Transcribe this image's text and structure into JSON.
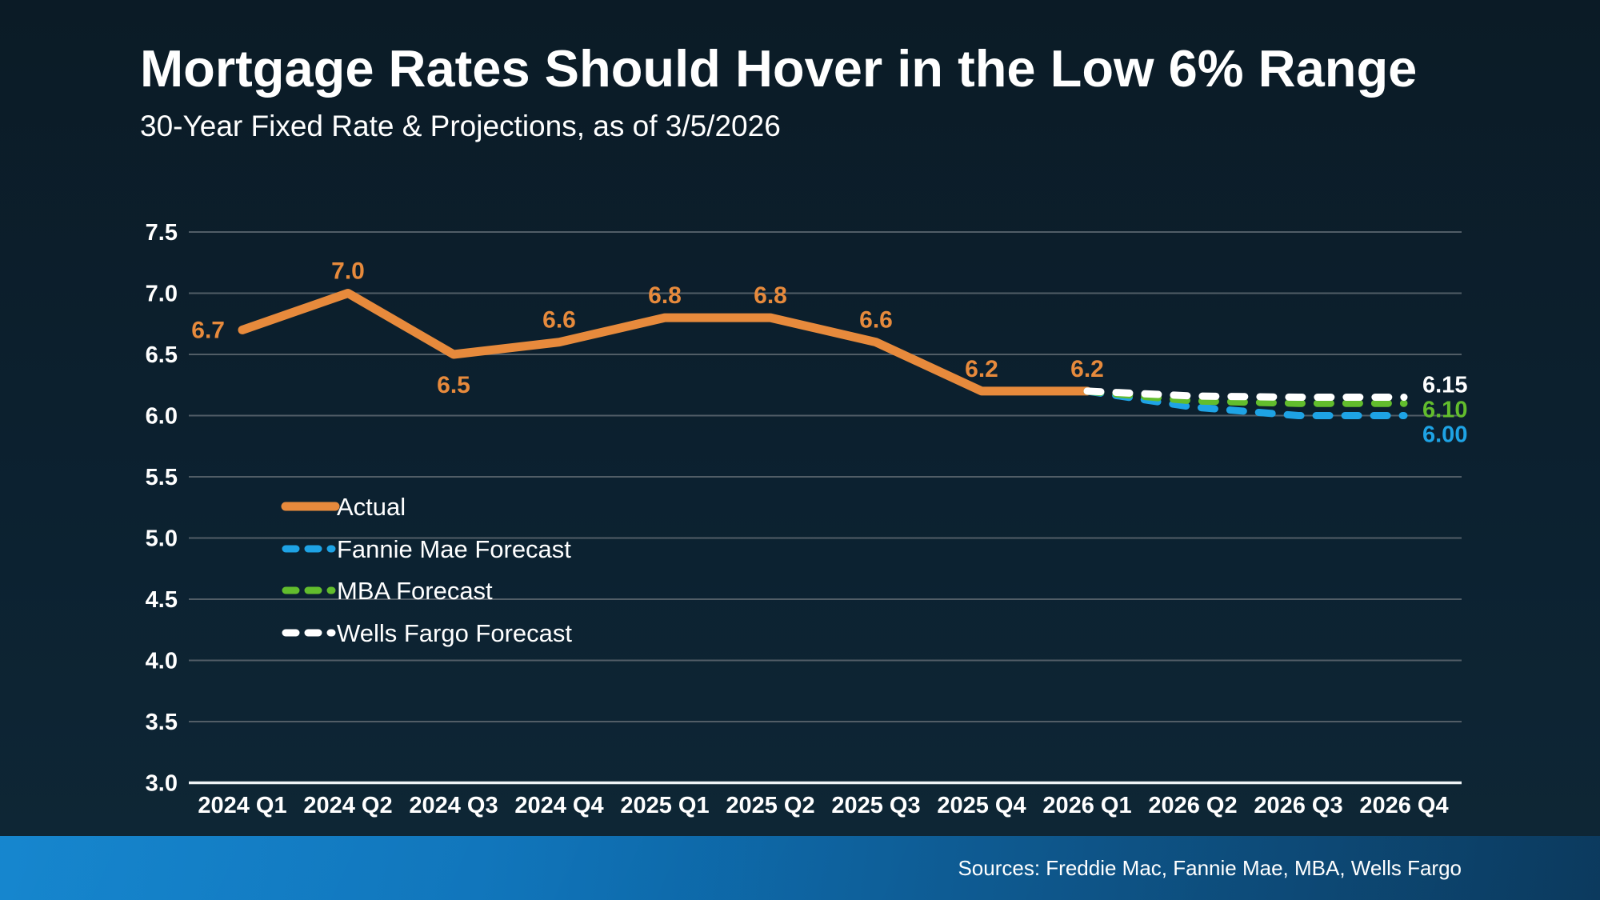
{
  "header": {
    "title": "Mortgage Rates Should Hover in the Low 6% Range",
    "subtitle": "30-Year Fixed Rate & Projections, as of 3/5/2026"
  },
  "footer": {
    "sources": "Sources: Freddie Mac, Fannie Mae, MBA, Wells Fargo"
  },
  "colors": {
    "background_top": "#0b1b26",
    "background_bottom": "#0e2736",
    "text": "#ffffff",
    "gridline": "#515d66",
    "axis_line": "#eef3f6",
    "actual": "#e78a3c",
    "fannie": "#1ea3e5",
    "mba": "#62bd2d",
    "wells": "#ffffff",
    "footer_left": "#0a80cc",
    "footer_right": "#0d3f66"
  },
  "chart_data": {
    "type": "line",
    "title": "Mortgage Rates Should Hover in the Low 6% Range",
    "subtitle": "30-Year Fixed Rate & Projections, as of 3/5/2026",
    "categories": [
      "2024 Q1",
      "2024 Q2",
      "2024 Q3",
      "2024 Q4",
      "2025 Q1",
      "2025 Q2",
      "2025 Q3",
      "2025 Q4",
      "2026 Q1",
      "2026 Q2",
      "2026 Q3",
      "2026 Q4"
    ],
    "y_axis": {
      "min": 3.0,
      "max": 7.5,
      "step": 0.5,
      "tick_labels": [
        "7.5",
        "7.0",
        "6.5",
        "6.0",
        "5.5",
        "5.0",
        "4.5",
        "4.0",
        "3.5",
        "3.0"
      ]
    },
    "grid": true,
    "legend_position": "middle-left",
    "legend": [
      "Actual",
      "Fannie Mae Forecast",
      "MBA Forecast",
      "Wells Fargo Forecast"
    ],
    "series": [
      {
        "name": "Actual",
        "color_key": "actual",
        "style": "solid",
        "values": [
          6.7,
          7.0,
          6.5,
          6.6,
          6.8,
          6.8,
          6.6,
          6.2,
          6.2,
          null,
          null,
          null
        ],
        "point_labels": [
          "6.7",
          "7.0",
          "6.5",
          "6.6",
          "6.8",
          "6.8",
          "6.6",
          "6.2",
          "6.2",
          null,
          null,
          null
        ],
        "point_label_positions": [
          "left",
          "above",
          "below",
          "above",
          "above",
          "above",
          "above",
          "above",
          "above",
          null,
          null,
          null
        ]
      },
      {
        "name": "Fannie Mae Forecast",
        "color_key": "fannie",
        "style": "dashed",
        "values": [
          null,
          null,
          null,
          null,
          null,
          null,
          null,
          null,
          6.2,
          6.07,
          6.0,
          6.0
        ],
        "end_label": "6.00"
      },
      {
        "name": "MBA Forecast",
        "color_key": "mba",
        "style": "dashed",
        "values": [
          null,
          null,
          null,
          null,
          null,
          null,
          null,
          null,
          6.2,
          6.12,
          6.1,
          6.1
        ],
        "end_label": "6.10"
      },
      {
        "name": "Wells Fargo Forecast",
        "color_key": "wells",
        "style": "dashed",
        "values": [
          null,
          null,
          null,
          null,
          null,
          null,
          null,
          null,
          6.2,
          6.16,
          6.15,
          6.15
        ],
        "end_label": "6.15"
      }
    ]
  }
}
